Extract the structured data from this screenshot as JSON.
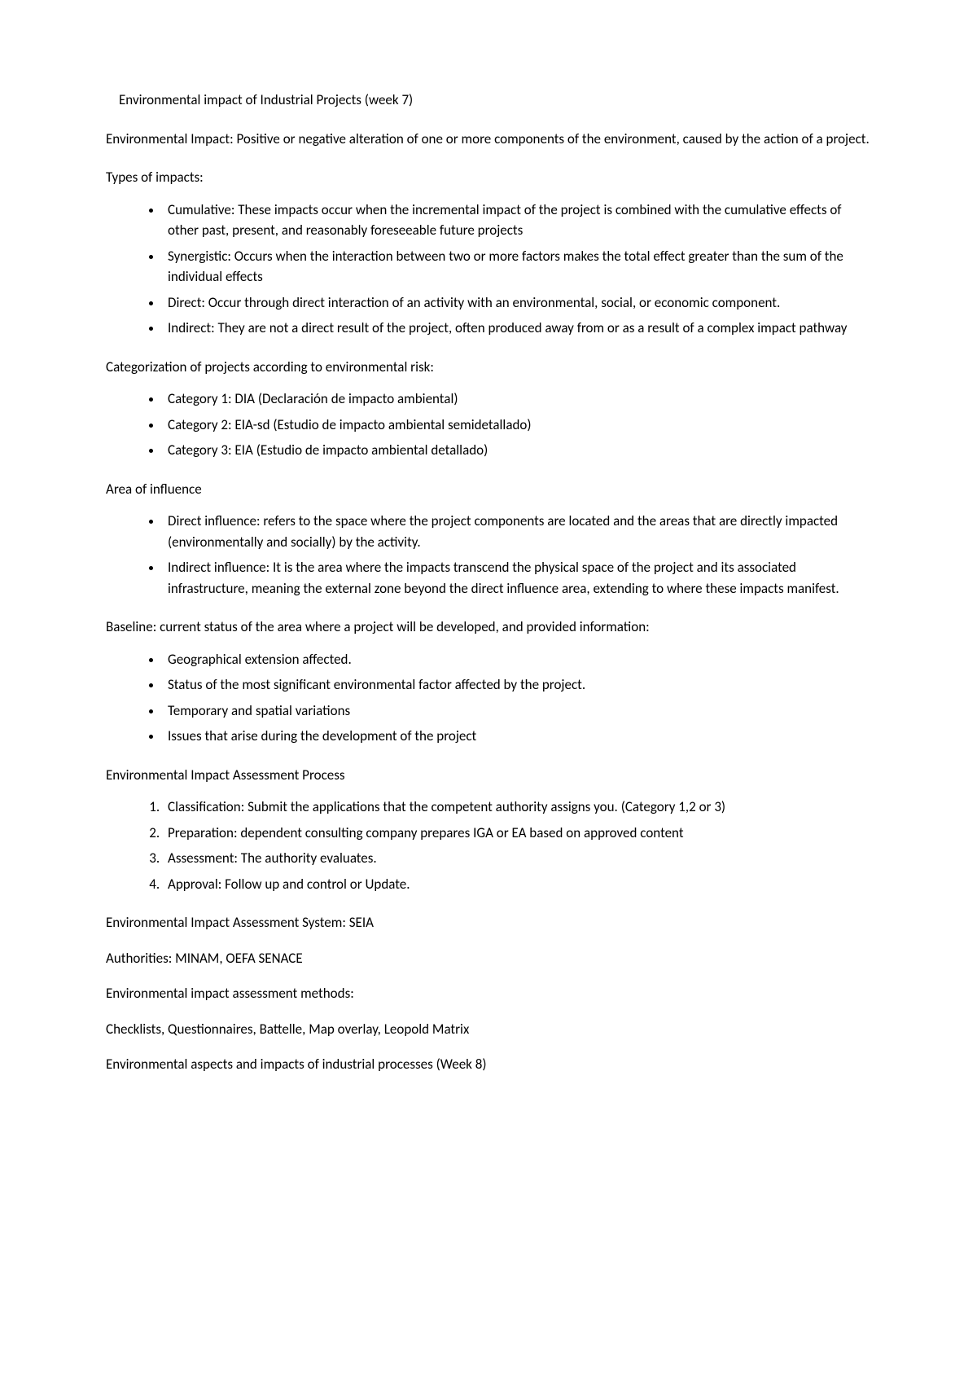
{
  "title": "Environmental impact of Industrial Projects (week 7)",
  "intro": "Environmental Impact: Positive or negative alteration of one or more components of the environment, caused by the action of a project.",
  "types_heading": "Types of impacts:",
  "types_items": [
    "Cumulative: These impacts occur when the incremental impact of the project is combined with the cumulative effects of other past, present, and reasonably foreseeable future projects",
    "Synergistic: Occurs when the interaction between two or more factors makes the total effect greater than the sum of the individual effects",
    "Direct: Occur through direct interaction of an activity with an environmental, social, or economic component.",
    "Indirect: They are not a direct result of the project, often produced away from or as a result of a complex impact pathway"
  ],
  "categorization_heading": "Categorization of projects according to environmental risk:",
  "categorization_items": [
    "Category 1: DIA (Declaración de impacto ambiental)",
    "Category 2: EIA-sd (Estudio de impacto ambiental semidetallado)",
    "Category 3: EIA (Estudio de impacto ambiental detallado)"
  ],
  "area_heading": "Area of influence",
  "area_items": [
    "Direct influence: refers to the space where the project components are located and the areas that are directly impacted (environmentally and socially) by the activity.",
    "Indirect influence: It is the area where the impacts transcend the physical space of the project and its associated infrastructure, meaning the external zone beyond the direct influence area, extending to where these impacts manifest."
  ],
  "baseline_heading": "Baseline: current status of the area where a project will be developed, and provided information:",
  "baseline_items": [
    "Geographical extension affected.",
    "Status of the most significant environmental factor affected by the project.",
    "Temporary and spatial variations",
    "Issues that arise during the development of the project"
  ],
  "process_heading": "Environmental Impact Assessment Process",
  "process_items": [
    "Classification: Submit the applications that the competent authority assigns you. (Category 1,2 or 3)",
    "Preparation: dependent consulting company prepares IGA or EA based on approved content",
    "Assessment: The authority evaluates.",
    "Approval: Follow up and control or Update."
  ],
  "seia_line": "Environmental Impact Assessment System: SEIA",
  "authorities_line": "Authorities: MINAM, OEFA SENACE",
  "methods_heading": "Environmental impact assessment methods:",
  "methods_line": "Checklists, Questionnaires, Battelle, Map overlay, Leopold Matrix",
  "week8_heading": "Environmental aspects and impacts of industrial processes (Week 8)"
}
